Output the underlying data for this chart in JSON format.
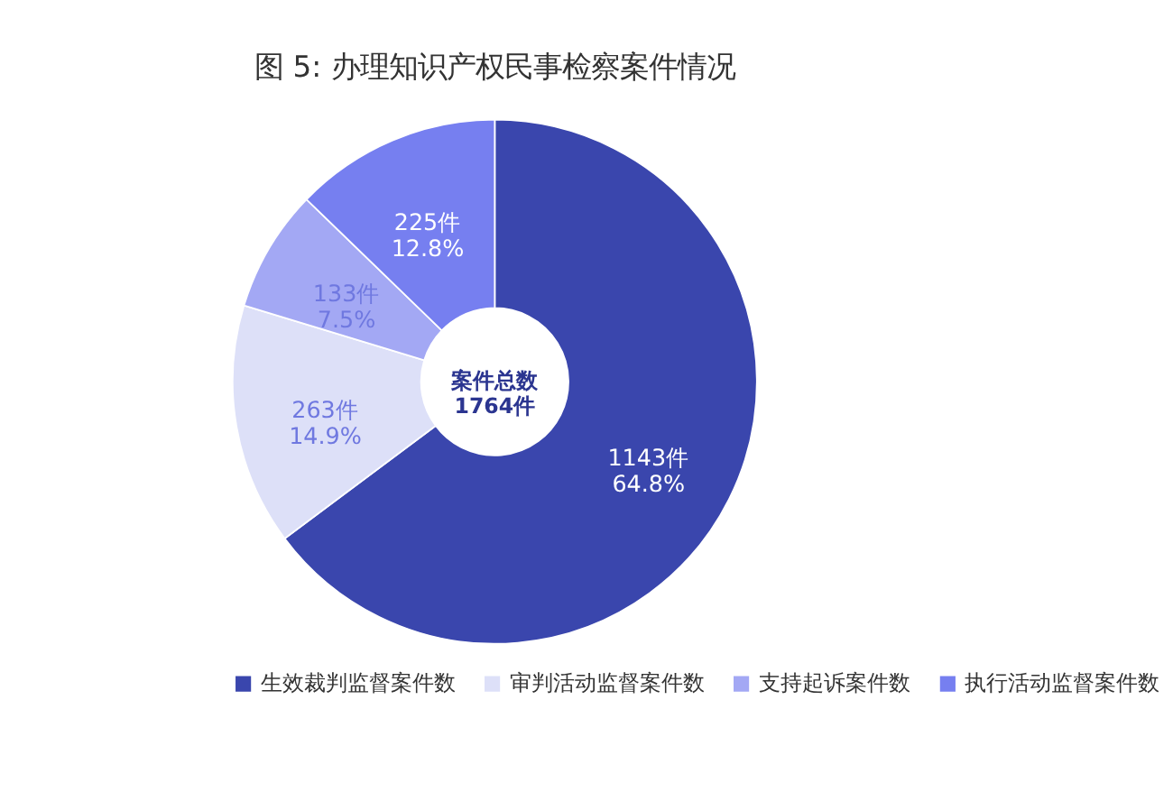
{
  "chart_data": {
    "type": "donut",
    "title": "图 5:   办理知识产权民事检察案件情况",
    "categories": [
      "生效裁判监督案件数",
      "审判活动监督案件数",
      "支持起诉案件数",
      "执行活动监督案件数"
    ],
    "values": [
      1143,
      263,
      133,
      225
    ],
    "colors": [
      "#3a46ad",
      "#dde0f8",
      "#a3a8f4",
      "#767ff0"
    ],
    "value_labels": [
      "1143件\n64.8%",
      "263件\n14.9%",
      "133件\n7.5%",
      "225件\n12.8%"
    ],
    "annotations": [
      "案件总数\n1764件"
    ],
    "legend": "bottom"
  }
}
